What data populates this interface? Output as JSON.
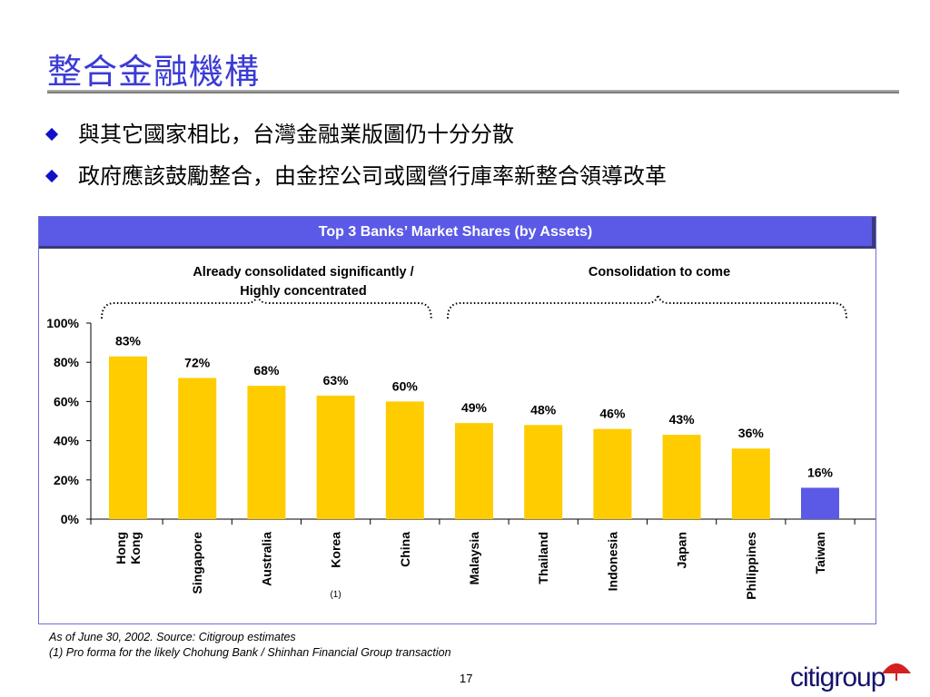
{
  "slide": {
    "title": "整合金融機構",
    "bullets": [
      "與其它國家相比，台灣金融業版圖仍十分分散",
      "政府應該鼓勵整合，由金控公司或國營行庫率新整合領導改革"
    ],
    "footnotes": [
      "As of June 30, 2002. Source: Citigroup estimates",
      "(1) Pro forma for the likely Chohung Bank / Shinhan Financial Group transaction"
    ],
    "page_number": "17",
    "logo_text": "citigroup"
  },
  "colors": {
    "title": "#3b3bd6",
    "header_bg": "#5a5ae6",
    "bar": "#ffcc00",
    "highlight_bar": "#5a5ae6"
  },
  "chart_data": {
    "type": "bar",
    "title": "Top 3 Banks’ Market Shares (by Assets)",
    "groups": [
      {
        "label_lines": [
          "Already consolidated significantly /",
          "Highly concentrated"
        ],
        "from": 0,
        "to": 4
      },
      {
        "label_lines": [
          "Consolidation to come"
        ],
        "from": 5,
        "to": 10
      }
    ],
    "categories": [
      [
        "Hong",
        "Kong"
      ],
      [
        "Singapore"
      ],
      [
        "Australia"
      ],
      [
        "Korea"
      ],
      [
        "China"
      ],
      [
        "Malaysia"
      ],
      [
        "Thailand"
      ],
      [
        "Indonesia"
      ],
      [
        "Japan"
      ],
      [
        "Philippines"
      ],
      [
        "Taiwan"
      ]
    ],
    "values": [
      83,
      72,
      68,
      63,
      60,
      49,
      48,
      46,
      43,
      36,
      16
    ],
    "value_labels": [
      "83%",
      "72%",
      "68%",
      "63%",
      "60%",
      "49%",
      "48%",
      "46%",
      "43%",
      "36%",
      "16%"
    ],
    "highlight_index": 10,
    "category_notes": [
      {
        "index": 3,
        "text": "(1)"
      }
    ],
    "yticks": [
      0,
      20,
      40,
      60,
      80,
      100
    ],
    "ytick_labels": [
      "0%",
      "20%",
      "40%",
      "60%",
      "80%",
      "100%"
    ],
    "ylim": [
      0,
      100
    ],
    "grid": false,
    "legend": "none"
  }
}
